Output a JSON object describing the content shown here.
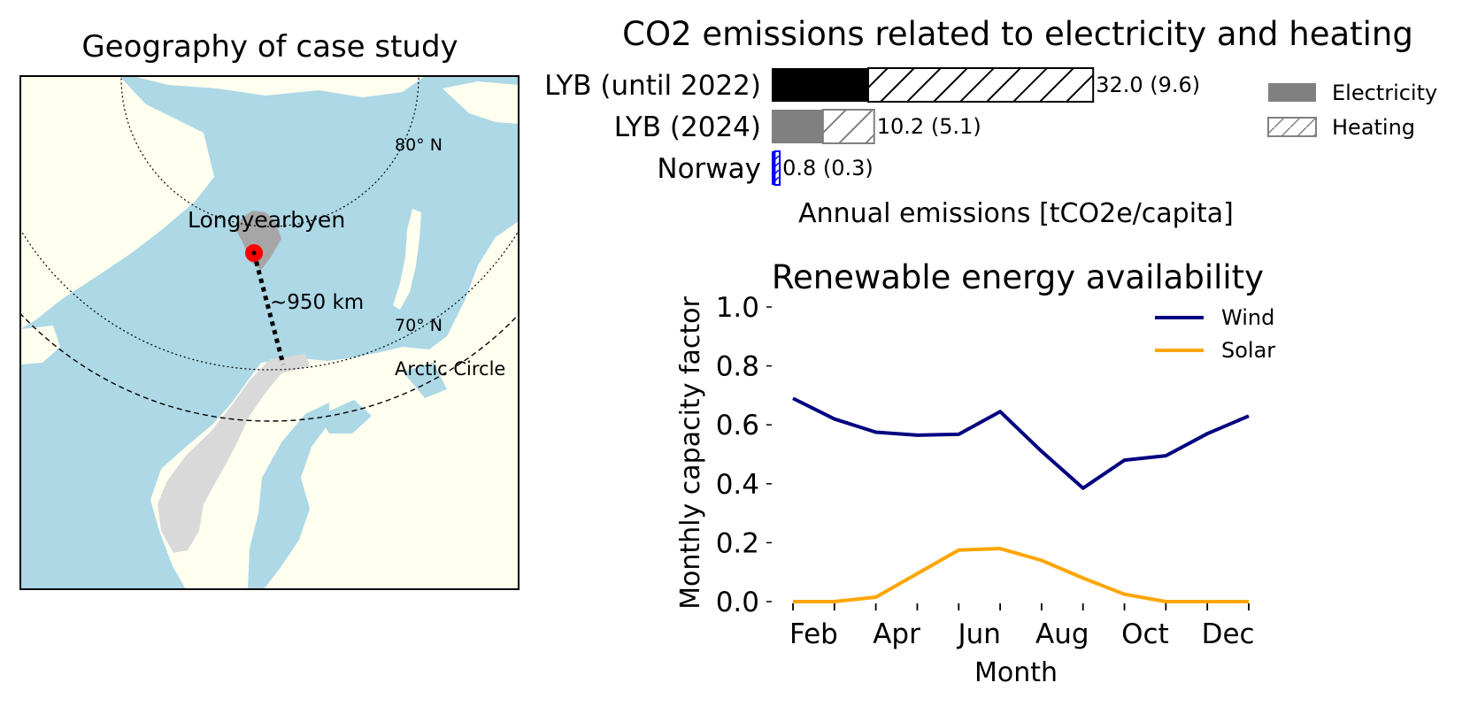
{
  "map": {
    "title": "Geography of case study",
    "labels": {
      "parallel_80": "80° N",
      "parallel_70": "70° N",
      "arctic_circle": "Arctic Circle",
      "city": "Longyearbyen",
      "distance": "~950 km"
    },
    "colors": {
      "sea": "#add8e6",
      "land": "#fffff0",
      "highlight": "#d9d9d9",
      "marker": "#ff0000"
    }
  },
  "chart_data": [
    {
      "type": "bar",
      "orientation": "horizontal",
      "title": "CO2 emissions related to electricity and heating",
      "xlabel": "Annual emissions [tCO2e/capita]",
      "categories": [
        "LYB (until 2022)",
        "LYB (2024)",
        "Norway"
      ],
      "series": [
        {
          "name": "Electricity",
          "values": [
            9.6,
            5.1,
            0.3
          ]
        },
        {
          "name": "Heating",
          "values": [
            22.4,
            5.1,
            0.5
          ]
        }
      ],
      "data_labels": [
        "32.0 (9.6)",
        "10.2 (5.1)",
        "0.8 (0.3)"
      ],
      "colors": [
        "#000000",
        "#808080",
        "#0000ff"
      ],
      "legend": "right"
    },
    {
      "type": "line",
      "title": "Renewable energy availability",
      "xlabel": "Month",
      "ylabel": "Monthly capacity factor",
      "x": [
        1,
        2,
        3,
        4,
        5,
        6,
        7,
        8,
        9,
        10,
        11,
        12
      ],
      "xticklabels": [
        "Feb",
        "Apr",
        "Jun",
        "Aug",
        "Oct",
        "Dec"
      ],
      "yticks": [
        "0.0",
        "0.2",
        "0.4",
        "0.6",
        "0.8",
        "1.0"
      ],
      "ylim": [
        0,
        1
      ],
      "series": [
        {
          "name": "Wind",
          "color": "#000080",
          "values": [
            0.69,
            0.62,
            0.575,
            0.565,
            0.568,
            0.645,
            0.51,
            0.385,
            0.48,
            0.495,
            0.57,
            0.63
          ]
        },
        {
          "name": "Solar",
          "color": "#ffa500",
          "values": [
            0.0,
            0.0,
            0.015,
            0.095,
            0.175,
            0.18,
            0.14,
            0.08,
            0.025,
            0.0,
            0.0,
            0.0
          ]
        }
      ],
      "legend": "top-right",
      "grid": false
    }
  ]
}
